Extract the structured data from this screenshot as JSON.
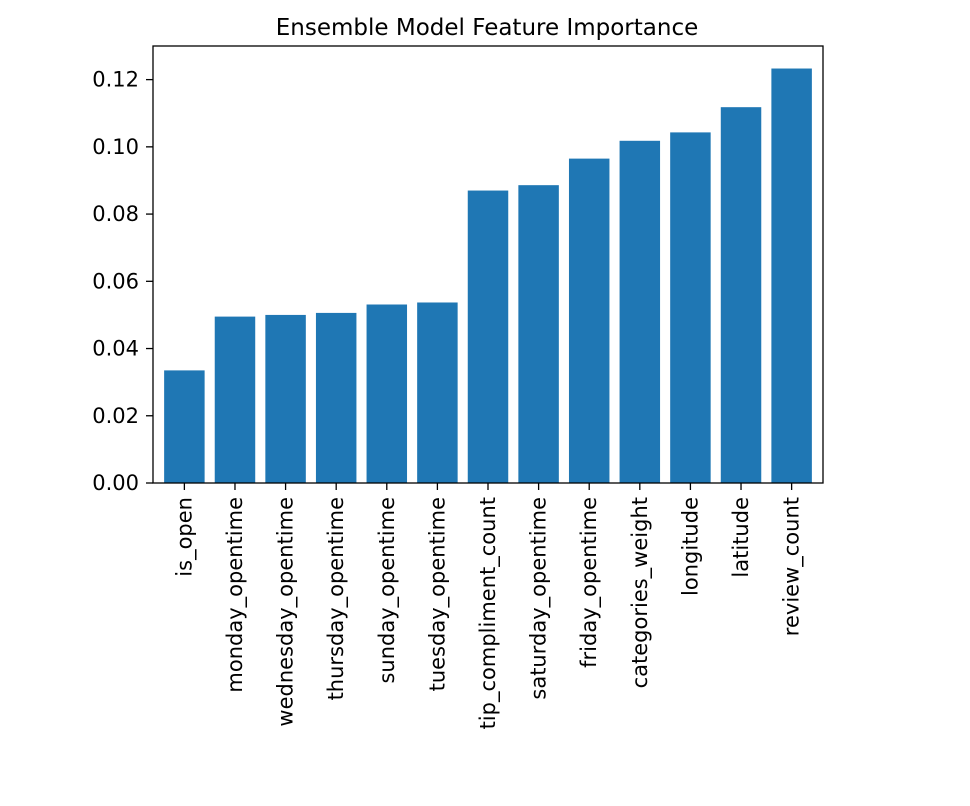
{
  "chart_data": {
    "type": "bar",
    "title": "Ensemble Model Feature Importance",
    "xlabel": "",
    "ylabel": "",
    "categories": [
      "is_open",
      "monday_opentime",
      "wednesday_opentime",
      "thursday_opentime",
      "sunday_opentime",
      "tuesday_opentime",
      "tip_compliment_count",
      "saturday_opentime",
      "friday_opentime",
      "categories_weight",
      "longitude",
      "latitude",
      "review_count"
    ],
    "values": [
      0.0335,
      0.0495,
      0.05,
      0.0506,
      0.0531,
      0.0537,
      0.087,
      0.0886,
      0.0965,
      0.1018,
      0.1043,
      0.1118,
      0.1233
    ],
    "ylim": [
      0,
      0.13
    ],
    "yticks": [
      "0.00",
      "0.02",
      "0.04",
      "0.06",
      "0.08",
      "0.10",
      "0.12"
    ],
    "bar_color": "#1f77b4",
    "grid": false,
    "legend": "none"
  }
}
